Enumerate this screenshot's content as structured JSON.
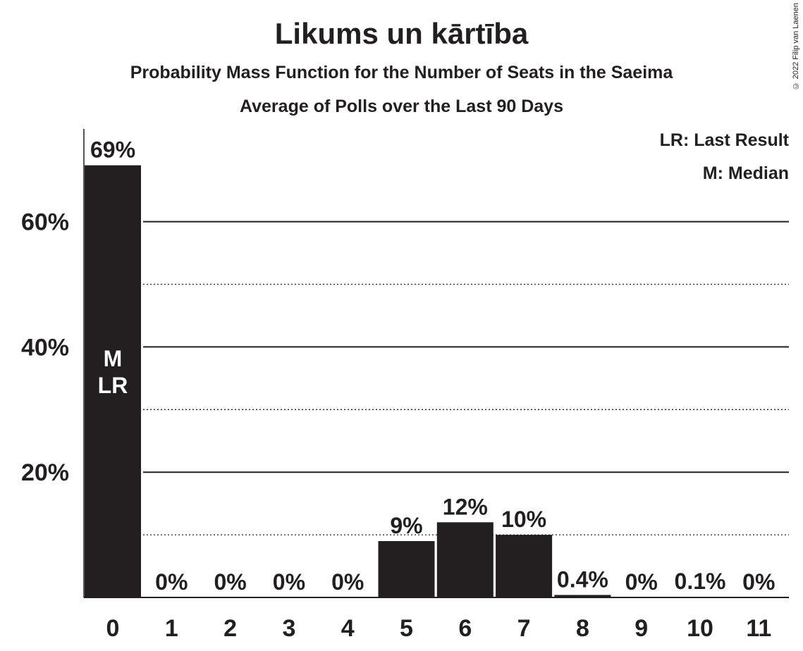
{
  "title": "Likums un kārtība",
  "subtitle": "Probability Mass Function for the Number of Seats in the Saeima",
  "subtitle2": "Average of Polls over the Last 90 Days",
  "copyright": "© 2022 Filip van Laenen",
  "legend": {
    "lr": "LR: Last Result",
    "m": "M: Median"
  },
  "colors": {
    "bar": "#231f20",
    "text": "#231f20",
    "background": "#ffffff"
  },
  "chart_data": {
    "type": "bar",
    "categories": [
      "0",
      "1",
      "2",
      "3",
      "4",
      "5",
      "6",
      "7",
      "8",
      "9",
      "10",
      "11"
    ],
    "values": [
      69,
      0,
      0,
      0,
      0,
      9,
      12,
      10,
      0.4,
      0,
      0.1,
      0
    ],
    "labels": [
      "69%",
      "0%",
      "0%",
      "0%",
      "0%",
      "9%",
      "12%",
      "10%",
      "0.4%",
      "0%",
      "0.1%",
      "0%"
    ],
    "yticks": [
      20,
      40,
      60
    ],
    "ytick_labels": [
      "20%",
      "40%",
      "60%"
    ],
    "minor_gridlines": [
      10,
      30,
      50
    ],
    "ylim": [
      0,
      75
    ],
    "in_bar_annotations": [
      {
        "category": "0",
        "lines": [
          "M",
          "LR"
        ]
      }
    ],
    "grid": true,
    "legend_position": "top-right"
  }
}
